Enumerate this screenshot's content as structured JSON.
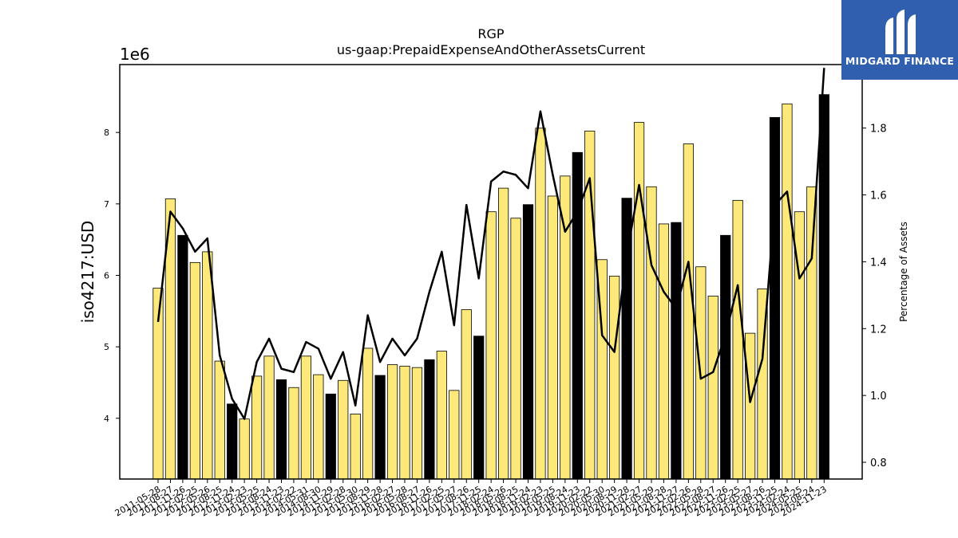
{
  "logo": {
    "text": "MIDGARD FINANCE"
  },
  "chart_data": {
    "type": "bar",
    "title": "RGP",
    "subtitle": "us-gaap:PrepaidExpenseAndOtherAssetsCurrent",
    "ylabel": "iso4217:USD",
    "y_offset_label": "1e6",
    "y2label": "Percentage of Assets",
    "ylim": [
      3.15,
      8.95
    ],
    "y2lim": [
      0.75,
      1.99
    ],
    "yticks": [
      4,
      5,
      6,
      7,
      8
    ],
    "y2ticks": [
      0.8,
      1.0,
      1.2,
      1.4,
      1.6,
      1.8
    ],
    "colors": {
      "quarter": "#fce97a",
      "fiscal_year_end": "#000000",
      "line": "#000000"
    },
    "categories": [
      "2011-05-28",
      "2011-08-27",
      "2011-11-26",
      "2012-02-25",
      "2012-05-26",
      "2012-08-25",
      "2012-11-24",
      "2013-02-23",
      "2013-05-25",
      "2013-08-24",
      "2013-11-23",
      "2014-02-22",
      "2014-05-31",
      "2014-08-30",
      "2014-11-29",
      "2015-02-28",
      "2015-05-30",
      "2015-08-29",
      "2015-11-28",
      "2016-02-27",
      "2016-05-28",
      "2016-08-27",
      "2016-11-26",
      "2017-02-25",
      "2017-05-27",
      "2017-08-26",
      "2017-11-25",
      "2018-02-24",
      "2018-05-26",
      "2018-08-25",
      "2018-11-24",
      "2019-02-23",
      "2019-05-25",
      "2019-08-24",
      "2019-11-23",
      "2020-02-22",
      "2020-05-30",
      "2020-08-29",
      "2020-11-28",
      "2021-02-27",
      "2021-05-29",
      "2021-08-28",
      "2021-11-27",
      "2022-02-26",
      "2022-05-28",
      "2022-08-27",
      "2022-11-26",
      "2023-02-25",
      "2023-05-27",
      "2023-08-26",
      "2023-11-25",
      "2024-02-24",
      "2024-05-25",
      "2024-08-24",
      "2024-11-23"
    ],
    "series": [
      {
        "type": "bar",
        "values": [
          5.82,
          7.07,
          6.56,
          6.18,
          6.33,
          4.8,
          4.2,
          3.99,
          4.59,
          4.87,
          4.54,
          4.43,
          4.87,
          4.61,
          4.34,
          4.53,
          4.06,
          4.98,
          4.6,
          4.75,
          4.73,
          4.71,
          4.82,
          4.94,
          4.39,
          5.52,
          5.15,
          6.89,
          7.22,
          6.8,
          6.99,
          8.06,
          7.11,
          7.39,
          7.72,
          8.02,
          6.22,
          5.99,
          7.08,
          8.14,
          7.24,
          6.72,
          6.74,
          7.84,
          6.12,
          5.71,
          6.56,
          7.05,
          5.19,
          5.81,
          8.21,
          8.4,
          6.89,
          7.24,
          8.53
        ],
        "fiscal_year_end": [
          false,
          false,
          true,
          false,
          false,
          false,
          true,
          false,
          false,
          false,
          true,
          false,
          false,
          false,
          true,
          false,
          false,
          false,
          true,
          false,
          false,
          false,
          true,
          false,
          false,
          false,
          true,
          false,
          false,
          false,
          true,
          false,
          false,
          false,
          true,
          false,
          false,
          false,
          true,
          false,
          false,
          false,
          true,
          false,
          false,
          false,
          true,
          false,
          false,
          false,
          true,
          false,
          false,
          false,
          true
        ]
      },
      {
        "type": "line",
        "axis": "right",
        "values": [
          1.22,
          1.55,
          1.5,
          1.43,
          1.47,
          1.12,
          0.99,
          0.93,
          1.1,
          1.17,
          1.08,
          1.07,
          1.16,
          1.14,
          1.05,
          1.13,
          0.97,
          1.24,
          1.1,
          1.17,
          1.12,
          1.17,
          1.31,
          1.43,
          1.21,
          1.57,
          1.35,
          1.64,
          1.67,
          1.66,
          1.62,
          1.85,
          1.66,
          1.49,
          1.55,
          1.65,
          1.18,
          1.13,
          1.42,
          1.63,
          1.39,
          1.31,
          1.26,
          1.4,
          1.05,
          1.07,
          1.18,
          1.33,
          0.98,
          1.11,
          1.57,
          1.61,
          1.35,
          1.41,
          1.98
        ]
      }
    ]
  }
}
